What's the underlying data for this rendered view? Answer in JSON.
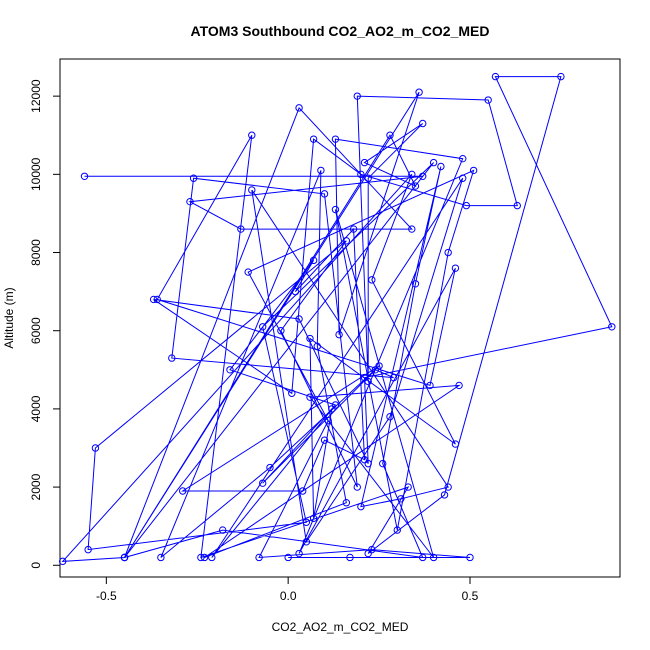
{
  "chart_data": {
    "type": "line",
    "title": "ATOM3 Southbound CO2_AO2_m_CO2_MED",
    "xlabel": "CO2_AO2_m_CO2_MED",
    "ylabel": "Altitude (m)",
    "xlim": [
      -0.65,
      0.9
    ],
    "ylim": [
      0,
      13000
    ],
    "xticks": [
      -0.5,
      0.0,
      0.5
    ],
    "xtick_labels": [
      "-0.5",
      "0.0",
      "0.5"
    ],
    "yticks": [
      0,
      2000,
      4000,
      6000,
      8000,
      10000,
      12000
    ],
    "ytick_labels": [
      "0",
      "2000",
      "4000",
      "6000",
      "8000",
      "10000",
      "12000"
    ],
    "color": "#0000ff",
    "marker": "open-circle",
    "series": [
      {
        "x": [
          -0.56,
          0.37,
          -0.27,
          -0.13,
          0.34,
          0.03,
          -0.45,
          0.28,
          0.35,
          0.21,
          0.37,
          0.22,
          0.22,
          0.19,
          0.55,
          0.63,
          0.49,
          0.2,
          0.07,
          0.01,
          -0.37,
          0.03,
          0.22,
          0.21,
          0.89,
          0.57,
          0.75,
          0.43,
          0.22,
          0.33,
          -0.24,
          -0.1,
          -0.36,
          0.39,
          0.46,
          0.03,
          0.48,
          0.13,
          0.14,
          0.36,
          -0.45,
          -0.62,
          0.34,
          0.23,
          0.46,
          0.06,
          0.07,
          0.12,
          -0.07,
          0.24,
          0.29,
          -0.32,
          -0.26,
          0.1,
          0.19,
          -0.02,
          0.16,
          -0.53,
          -0.55,
          0.05,
          -0.07,
          0.4,
          -0.45,
          -0.18,
          0.37,
          0.26,
          0.35,
          0.42,
          0.2,
          0.31,
          0.44,
          -0.1,
          0.05,
          0.28,
          0.48,
          -0.21,
          0.13,
          -0.16,
          0.07,
          0.02,
          0.18,
          0.21,
          0.1,
          0.04,
          -0.29,
          0.25,
          -0.05,
          -0.35,
          0.09,
          0.08,
          0.16,
          -0.23,
          0.47,
          0.06,
          0.4,
          0.13,
          0.3,
          0.44,
          0.51,
          -0.11,
          0.11,
          -0.08,
          0.23,
          0.5,
          0.0,
          0.17
        ],
        "y": [
          9950,
          9950,
          9300,
          8600,
          8600,
          11700,
          200,
          11000,
          9700,
          10300,
          11300,
          9900,
          4700,
          12000,
          11900,
          9200,
          9200,
          10000,
          10900,
          4400,
          6800,
          6300,
          2600,
          4800,
          6100,
          12500,
          12500,
          1800,
          300,
          2000,
          200,
          11000,
          6800,
          4600,
          7600,
          300,
          10400,
          10900,
          5900,
          12100,
          200,
          100,
          10000,
          7300,
          3100,
          5800,
          1200,
          4000,
          2100,
          5000,
          4800,
          5300,
          9900,
          9500,
          2000,
          6000,
          8300,
          3000,
          400,
          1100,
          6100,
          10300,
          200,
          900,
          200,
          2600,
          7200,
          10200,
          1500,
          1700,
          2000,
          9600,
          600,
          3800,
          9900,
          200,
          4100,
          5000,
          7800,
          7000,
          8600,
          2700,
          3200,
          1900,
          1900,
          5100,
          2500,
          200,
          10100,
          5600,
          1600,
          200,
          4600,
          4300,
          200,
          9100,
          900,
          8000,
          10100,
          7500,
          3700,
          200,
          400,
          200,
          200,
          200
        ]
      }
    ]
  }
}
